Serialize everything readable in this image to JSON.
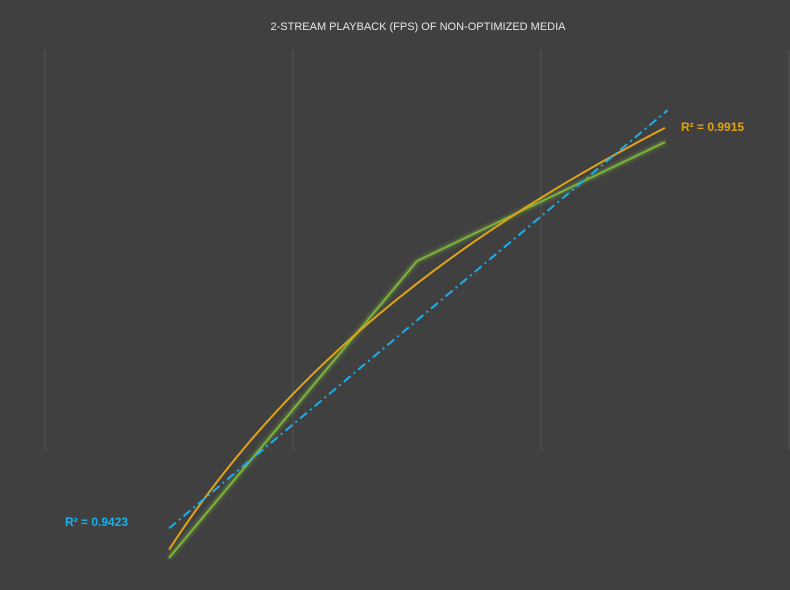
{
  "chart_data": {
    "type": "line",
    "title": "2-STREAM PLAYBACK (FPS) OF NON-OPTIMIZED MEDIA",
    "categories": [
      null,
      null,
      null
    ],
    "series": [
      {
        "color": "#7cb23a",
        "values": [
          2.3,
          59.4,
          82.3
        ]
      }
    ],
    "ylim": [
      0,
      100
    ],
    "grid": true,
    "trendlines": [
      {
        "type": "log",
        "color": "#e0a318",
        "label": "R² = 0.9915"
      },
      {
        "type": "linear",
        "color": "#1ab0ec",
        "label": "R² = 0.9423"
      }
    ]
  }
}
